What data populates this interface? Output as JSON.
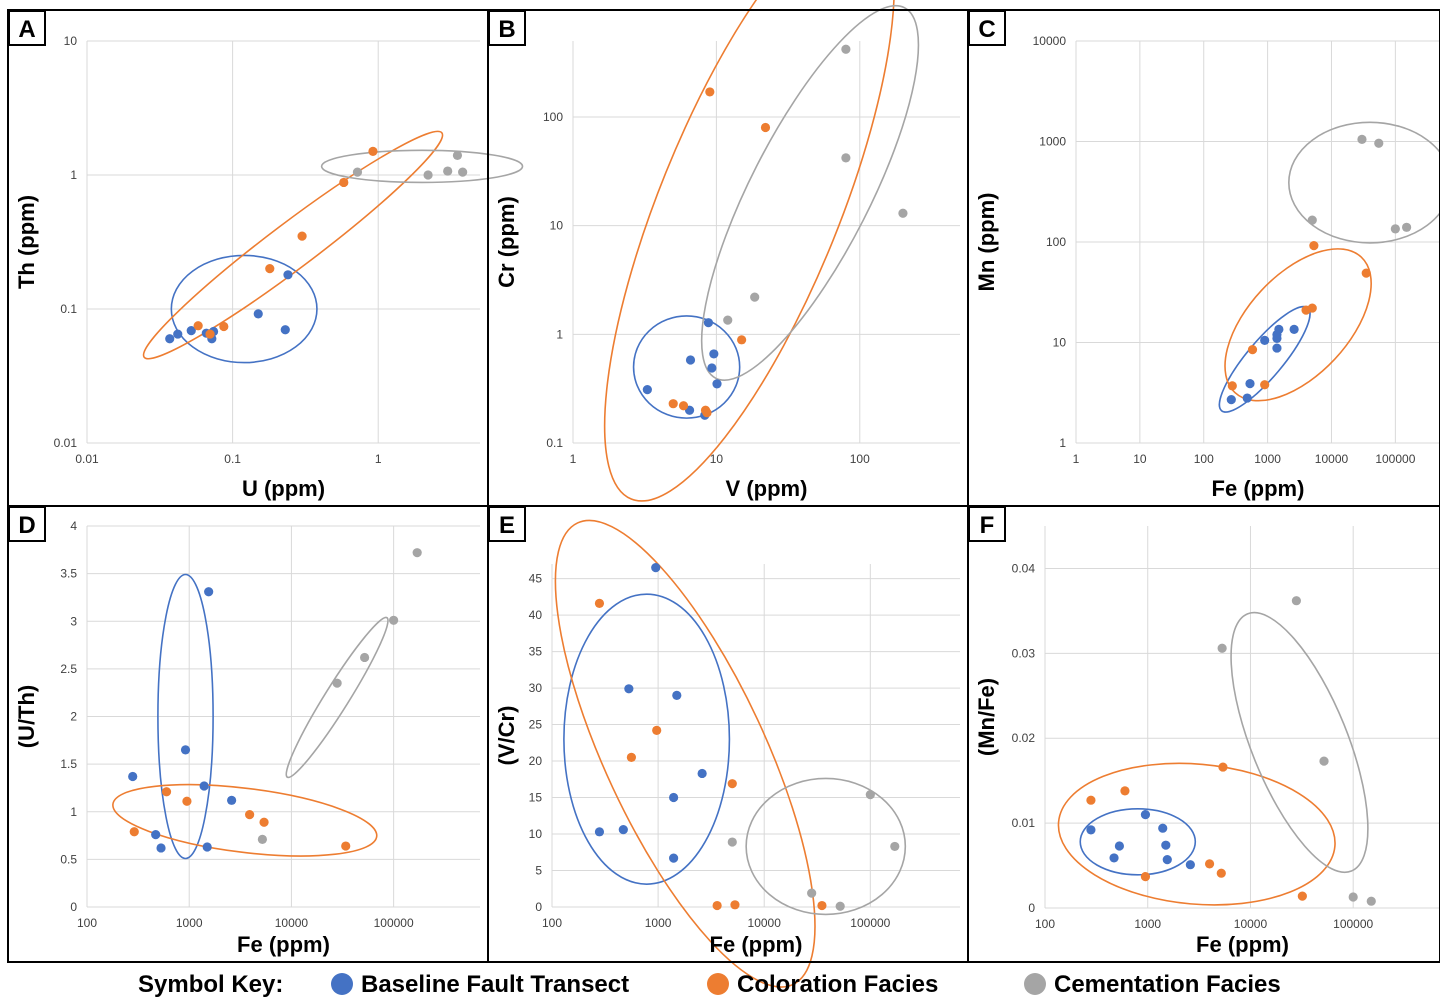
{
  "colors": {
    "baseline": "#4472c4",
    "coloration": "#ed7d31",
    "cementation": "#a5a5a5",
    "grid": "#d9d9d9",
    "frame": "#000000"
  },
  "legend": {
    "title": "Symbol Key:",
    "items": [
      {
        "key": "baseline",
        "label": "Baseline Fault Transect"
      },
      {
        "key": "coloration",
        "label": "Coloration Facies"
      },
      {
        "key": "cementation",
        "label": "Cementation Facies"
      }
    ]
  },
  "chart_data": [
    {
      "panel": "A",
      "type": "scatter",
      "xlabel": "U (ppm)",
      "ylabel": "Th (ppm)",
      "xscale": "log",
      "yscale": "log",
      "xlim": [
        0.01,
        5
      ],
      "ylim": [
        0.01,
        10
      ],
      "xticks": [
        0.01,
        0.1,
        1
      ],
      "xtick_labels": [
        "0.01",
        "0.1",
        "1"
      ],
      "yticks": [
        0.01,
        0.1,
        1,
        10
      ],
      "ytick_labels": [
        "0.01",
        "0.1",
        "1",
        "10"
      ],
      "grid": true,
      "series": [
        {
          "key": "baseline",
          "name": "Baseline Fault Transect",
          "x": [
            0.037,
            0.042,
            0.052,
            0.066,
            0.072,
            0.074,
            0.15,
            0.23,
            0.24
          ],
          "y": [
            0.06,
            0.065,
            0.069,
            0.066,
            0.06,
            0.068,
            0.092,
            0.07,
            0.18
          ]
        },
        {
          "key": "coloration",
          "name": "Coloration Facies",
          "x": [
            0.058,
            0.07,
            0.087,
            0.18,
            0.3,
            0.58,
            0.92
          ],
          "y": [
            0.075,
            0.065,
            0.074,
            0.2,
            0.35,
            0.88,
            1.5
          ]
        },
        {
          "key": "cementation",
          "name": "Cementation Facies",
          "x": [
            0.72,
            2.2,
            3.0,
            3.5,
            3.8
          ],
          "y": [
            1.05,
            1.0,
            1.07,
            1.4,
            1.05
          ]
        }
      ],
      "ellipses": [
        {
          "key": "baseline",
          "cx": 0.12,
          "cy": 0.1,
          "rx_dec": 0.5,
          "ry_dec": 0.4,
          "angle": 0
        },
        {
          "key": "coloration",
          "cx": 0.26,
          "cy": 0.3,
          "rx_dec": 1.28,
          "ry_dec": 0.17,
          "angle": -37
        },
        {
          "key": "cementation",
          "cx": 2.0,
          "cy": 1.16,
          "rx_dec": 0.69,
          "ry_dec": 0.12,
          "angle": 0
        }
      ]
    },
    {
      "panel": "B",
      "type": "scatter",
      "xlabel": "V (ppm)",
      "ylabel": "Cr (ppm)",
      "xscale": "log",
      "yscale": "log",
      "xlim": [
        1,
        500
      ],
      "ylim": [
        0.1,
        500
      ],
      "xticks": [
        1,
        10,
        100
      ],
      "xtick_labels": [
        "1",
        "10",
        "100"
      ],
      "yticks": [
        0.1,
        1,
        10,
        100
      ],
      "ytick_labels": [
        "0.1",
        "1",
        "10",
        "100"
      ],
      "grid": true,
      "series": [
        {
          "key": "baseline",
          "name": "Baseline Fault Transect",
          "x": [
            3.3,
            6.5,
            6.6,
            8.3,
            8.8,
            9.3,
            9.6,
            10.1
          ],
          "y": [
            0.31,
            0.2,
            0.58,
            0.18,
            1.28,
            0.49,
            0.66,
            0.35
          ]
        },
        {
          "key": "coloration",
          "name": "Coloration Facies",
          "x": [
            5.0,
            5.9,
            8.4,
            8.6,
            9.0,
            15.0,
            22.0
          ],
          "y": [
            0.23,
            0.22,
            0.2,
            0.19,
            170.0,
            0.89,
            80.0
          ]
        },
        {
          "key": "cementation",
          "name": "Cementation Facies",
          "x": [
            12.0,
            18.5,
            80.0,
            80.0,
            200.0
          ],
          "y": [
            1.35,
            2.2,
            42.0,
            420.0,
            13.0
          ]
        }
      ],
      "ellipses": [
        {
          "key": "baseline",
          "cx": 6.2,
          "cy": 0.5,
          "rx_dec": 0.37,
          "ry_dec": 0.47,
          "angle": 0
        },
        {
          "key": "coloration",
          "cx": 17.0,
          "cy": 15.0,
          "rx_dec": 2.2,
          "ry_dec": 0.83,
          "angle": -68
        },
        {
          "key": "cementation",
          "cx": 45.0,
          "cy": 20.0,
          "rx_dec": 1.45,
          "ry_dec": 0.55,
          "angle": -63
        }
      ]
    },
    {
      "panel": "C",
      "type": "scatter",
      "xlabel": "Fe (ppm)",
      "ylabel": "Mn (ppm)",
      "xscale": "log",
      "yscale": "log",
      "xlim": [
        1,
        500000
      ],
      "ylim": [
        1,
        10000
      ],
      "xticks": [
        1,
        10,
        100,
        1000,
        10000,
        100000
      ],
      "xtick_labels": [
        "1",
        "10",
        "100",
        "1000",
        "10000",
        "100000"
      ],
      "yticks": [
        1,
        10,
        100,
        1000,
        10000
      ],
      "ytick_labels": [
        "1",
        "10",
        "100",
        "1000",
        "10000"
      ],
      "grid": true,
      "series": [
        {
          "key": "baseline",
          "name": "Baseline Fault Transect",
          "x": [
            270,
            480,
            530,
            900,
            1400,
            1400,
            1400,
            1500,
            2600
          ],
          "y": [
            2.7,
            2.8,
            3.9,
            10.5,
            8.8,
            11.0,
            12.0,
            13.5,
            13.5
          ]
        },
        {
          "key": "coloration",
          "name": "Coloration Facies",
          "x": [
            280,
            580,
            900,
            4000,
            5000,
            5300,
            35000
          ],
          "y": [
            3.7,
            8.5,
            3.8,
            21.0,
            22.0,
            92.0,
            49.0
          ]
        },
        {
          "key": "cementation",
          "name": "Cementation Facies",
          "x": [
            5000,
            30000,
            55000,
            100000,
            150000
          ],
          "y": [
            165.0,
            1050.0,
            960.0,
            135.0,
            140.0
          ]
        }
      ],
      "ellipses": [
        {
          "key": "baseline",
          "cx": 900,
          "cy": 6.8,
          "rx_dec": 1.05,
          "ry_dec": 0.18,
          "angle": -50
        },
        {
          "key": "coloration",
          "cx": 3000,
          "cy": 15.0,
          "rx_dec": 1.45,
          "ry_dec": 0.5,
          "angle": -47
        },
        {
          "key": "cementation",
          "cx": 40000,
          "cy": 390.0,
          "rx_dec": 1.27,
          "ry_dec": 0.6,
          "angle": 0
        }
      ]
    },
    {
      "panel": "D",
      "type": "scatter",
      "xlabel": "Fe (ppm)",
      "ylabel": "(U/Th)",
      "xscale": "log",
      "yscale": "linear",
      "xlim": [
        100,
        700000
      ],
      "ylim": [
        0,
        4
      ],
      "xticks": [
        100,
        1000,
        10000,
        100000
      ],
      "xtick_labels": [
        "100",
        "1000",
        "10000",
        "100000"
      ],
      "yticks": [
        0,
        0.5,
        1,
        1.5,
        2,
        2.5,
        3,
        3.5,
        4
      ],
      "ytick_labels": [
        "0",
        "0.5",
        "1",
        "1.5",
        "2",
        "2.5",
        "3",
        "3.5",
        "4"
      ],
      "grid": true,
      "series": [
        {
          "key": "baseline",
          "name": "Baseline Fault Transect",
          "x": [
            280,
            470,
            530,
            920,
            1400,
            1500,
            1550,
            2600
          ],
          "y": [
            1.37,
            0.76,
            0.62,
            1.65,
            1.27,
            0.63,
            3.31,
            1.12
          ]
        },
        {
          "key": "coloration",
          "name": "Coloration Facies",
          "x": [
            290,
            600,
            950,
            3900,
            5400,
            34000
          ],
          "y": [
            0.79,
            1.21,
            1.11,
            0.97,
            0.89,
            0.64
          ]
        },
        {
          "key": "cementation",
          "name": "Cementation Facies",
          "x": [
            5200,
            28000,
            52000,
            100000,
            170000
          ],
          "y": [
            0.71,
            2.35,
            2.62,
            3.01,
            3.72
          ]
        }
      ],
      "ellipses": [
        {
          "key": "baseline",
          "cx": 920,
          "cy": 2.0,
          "rx_dec": 0.27,
          "ry_px": 142,
          "angle": 0
        },
        {
          "key": "coloration",
          "cx": 3500,
          "cy": 0.91,
          "rx_dec": 1.3,
          "ry_px": 32,
          "angle": 7
        },
        {
          "key": "cementation",
          "cx": 28000,
          "cy": 2.2,
          "rx_dec": 0.92,
          "ry_px": 12,
          "angle": -58
        }
      ]
    },
    {
      "panel": "E",
      "type": "scatter",
      "xlabel": "Fe (ppm)",
      "ylabel": "(V/Cr)",
      "xscale": "log",
      "yscale": "linear",
      "xlim": [
        100,
        700000
      ],
      "ylim": [
        0,
        47
      ],
      "xticks": [
        100,
        1000,
        10000,
        100000
      ],
      "xtick_labels": [
        "100",
        "1000",
        "10000",
        "100000"
      ],
      "yticks": [
        0,
        5,
        10,
        15,
        20,
        25,
        30,
        35,
        40,
        45
      ],
      "ytick_labels": [
        "0",
        "5",
        "10",
        "15",
        "20",
        "25",
        "30",
        "35",
        "40",
        "45"
      ],
      "grid": true,
      "series": [
        {
          "key": "baseline",
          "name": "Baseline Fault Transect",
          "x": [
            280,
            470,
            530,
            950,
            1400,
            1400,
            1500,
            2600
          ],
          "y": [
            10.3,
            10.6,
            29.9,
            46.5,
            6.7,
            15.0,
            29.0,
            18.3
          ]
        },
        {
          "key": "coloration",
          "name": "Coloration Facies",
          "x": [
            280,
            560,
            970,
            3600,
            5000,
            5300,
            35000
          ],
          "y": [
            41.6,
            20.5,
            24.2,
            0.2,
            16.9,
            0.3,
            0.2
          ]
        },
        {
          "key": "cementation",
          "name": "Cementation Facies",
          "x": [
            5000,
            28000,
            52000,
            100000,
            170000
          ],
          "y": [
            8.9,
            1.9,
            0.1,
            15.4,
            8.3
          ]
        }
      ],
      "ellipses": [
        {
          "key": "baseline",
          "cx": 780,
          "cy": 23.0,
          "rx_dec": 0.78,
          "ry_px": 145,
          "angle": 0
        },
        {
          "key": "coloration",
          "cx": 1800,
          "cy": 21.0,
          "rx_dec": 2.4,
          "ry_px": 80,
          "angle": 65
        },
        {
          "key": "cementation",
          "cx": 38000,
          "cy": 8.3,
          "rx_dec": 0.75,
          "ry_px": 68,
          "angle": 0
        }
      ]
    },
    {
      "panel": "F",
      "type": "scatter",
      "xlabel": "Fe (ppm)",
      "ylabel": "(Mn/Fe)",
      "xscale": "log",
      "yscale": "linear",
      "xlim": [
        100,
        700000
      ],
      "ylim": [
        0,
        0.045
      ],
      "xticks": [
        100,
        1000,
        10000,
        100000
      ],
      "xtick_labels": [
        "100",
        "1000",
        "10000",
        "100000"
      ],
      "yticks": [
        0,
        0.01,
        0.02,
        0.03,
        0.04
      ],
      "ytick_labels": [
        "0",
        "0.01",
        "0.02",
        "0.03",
        "0.04"
      ],
      "grid": true,
      "series": [
        {
          "key": "baseline",
          "name": "Baseline Fault Transect",
          "x": [
            280,
            470,
            530,
            950,
            1400,
            1500,
            1550,
            2600
          ],
          "y": [
            0.0092,
            0.0059,
            0.0073,
            0.011,
            0.0094,
            0.0074,
            0.0057,
            0.0051
          ]
        },
        {
          "key": "coloration",
          "name": "Coloration Facies",
          "x": [
            280,
            600,
            950,
            4000,
            5200,
            5400,
            32000
          ],
          "y": [
            0.0127,
            0.0138,
            0.0037,
            0.0052,
            0.0041,
            0.0166,
            0.0014
          ]
        },
        {
          "key": "cementation",
          "name": "Cementation Facies",
          "x": [
            5300,
            28000,
            52000,
            100000,
            150000
          ],
          "y": [
            0.0306,
            0.0362,
            0.0173,
            0.0013,
            0.0008
          ]
        }
      ],
      "ellipses": [
        {
          "key": "baseline",
          "cx": 800,
          "cy": 0.0078,
          "rx_dec": 0.56,
          "ry_px": 33,
          "angle": 0
        },
        {
          "key": "coloration",
          "cx": 3000,
          "cy": 0.0087,
          "rx_dec": 1.35,
          "ry_px": 70,
          "angle": 5
        },
        {
          "key": "cementation",
          "cx": 30000,
          "cy": 0.0195,
          "rx_dec": 1.35,
          "ry_px": 48,
          "angle": 68
        }
      ]
    }
  ]
}
